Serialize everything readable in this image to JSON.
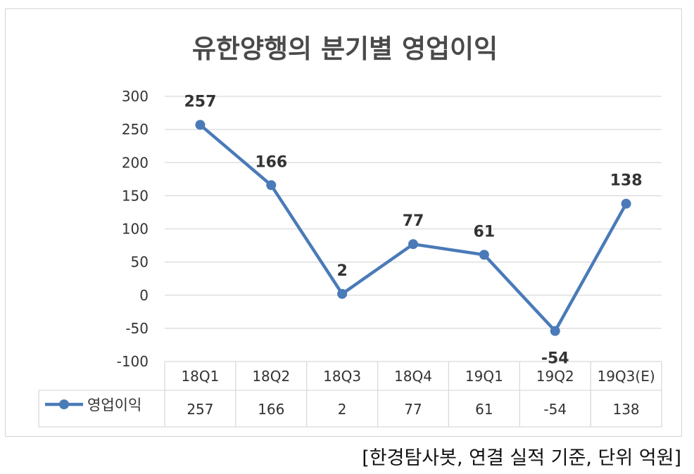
{
  "chart_data": {
    "type": "line",
    "title": "유한양행의 분기별 영업이익",
    "categories": [
      "18Q1",
      "18Q2",
      "18Q3",
      "18Q4",
      "19Q1",
      "19Q2",
      "19Q3(E)"
    ],
    "series": [
      {
        "name": "영업이익",
        "values": [
          257,
          166,
          2,
          77,
          61,
          -54,
          138
        ],
        "color": "#4a7ab8"
      }
    ],
    "ylim": [
      -100,
      300
    ],
    "yticks": [
      "300",
      "250",
      "200",
      "150",
      "100",
      "50",
      "0",
      "-50",
      "-100"
    ],
    "data_labels": [
      "257",
      "166",
      "2",
      "77",
      "61",
      "-54",
      "138"
    ],
    "table_values": [
      "257",
      "166",
      "2",
      "77",
      "61",
      "-54",
      "138"
    ],
    "grid": true,
    "legend": "data-table"
  },
  "source_note": "[한경탐사봇, 연결 실적 기준, 단위 억원]"
}
